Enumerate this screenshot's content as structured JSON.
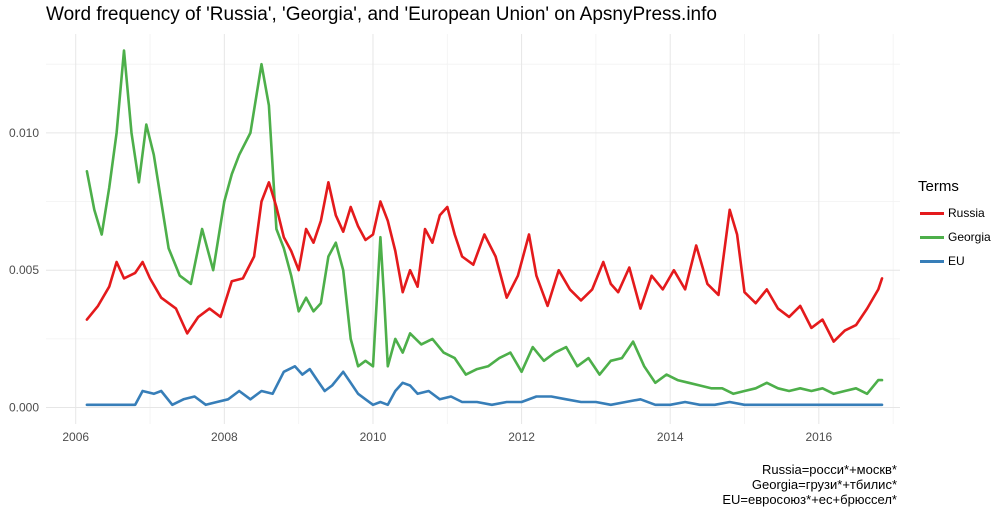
{
  "title": "Word frequency of 'Russia', 'Georgia', and 'European Union' on ApsnyPress.info",
  "legend": {
    "title": "Terms"
  },
  "caption": [
    "Russia=росси*+москв*",
    "Georgia=грузи*+тбилис*",
    "EU=евросоюз*+ес+брюссел*"
  ],
  "chart_data": {
    "type": "line",
    "title": "Word frequency of 'Russia', 'Georgia', and 'European Union' on ApsnyPress.info",
    "xlabel": "",
    "ylabel": "",
    "xlim": [
      2005.6,
      2017.2
    ],
    "ylim": [
      -0.0006,
      0.0136
    ],
    "x_ticks": [
      2006,
      2008,
      2010,
      2012,
      2014,
      2016
    ],
    "y_ticks": [
      0.0,
      0.005,
      0.01
    ],
    "y_tick_labels": [
      "0.000",
      "0.005",
      "0.010"
    ],
    "grid": true,
    "legend_position": "right",
    "series": [
      {
        "name": "Russia",
        "color": "#e41a1c",
        "x": [
          2006.15,
          2006.3,
          2006.45,
          2006.55,
          2006.65,
          2006.8,
          2006.9,
          2007.0,
          2007.15,
          2007.35,
          2007.5,
          2007.65,
          2007.8,
          2007.95,
          2008.1,
          2008.25,
          2008.4,
          2008.5,
          2008.6,
          2008.7,
          2008.8,
          2008.9,
          2009.0,
          2009.1,
          2009.2,
          2009.3,
          2009.4,
          2009.5,
          2009.6,
          2009.7,
          2009.8,
          2009.9,
          2010.0,
          2010.1,
          2010.2,
          2010.3,
          2010.4,
          2010.5,
          2010.6,
          2010.7,
          2010.8,
          2010.9,
          2011.0,
          2011.1,
          2011.2,
          2011.35,
          2011.5,
          2011.65,
          2011.8,
          2011.95,
          2012.1,
          2012.2,
          2012.35,
          2012.5,
          2012.65,
          2012.8,
          2012.95,
          2013.1,
          2013.2,
          2013.3,
          2013.45,
          2013.6,
          2013.75,
          2013.9,
          2014.05,
          2014.2,
          2014.35,
          2014.5,
          2014.65,
          2014.8,
          2014.9,
          2015.0,
          2015.15,
          2015.3,
          2015.45,
          2015.6,
          2015.75,
          2015.9,
          2016.05,
          2016.2,
          2016.35,
          2016.5,
          2016.65,
          2016.8,
          2016.85
        ],
        "values": [
          0.0032,
          0.0037,
          0.0044,
          0.0053,
          0.0047,
          0.0049,
          0.0053,
          0.0047,
          0.004,
          0.0036,
          0.0027,
          0.0033,
          0.0036,
          0.0033,
          0.0046,
          0.0047,
          0.0055,
          0.0075,
          0.0082,
          0.0073,
          0.0062,
          0.0057,
          0.005,
          0.0065,
          0.006,
          0.0068,
          0.0082,
          0.007,
          0.0064,
          0.0073,
          0.0066,
          0.0061,
          0.0063,
          0.0075,
          0.0068,
          0.0057,
          0.0042,
          0.005,
          0.0044,
          0.0065,
          0.006,
          0.007,
          0.0073,
          0.0063,
          0.0055,
          0.0052,
          0.0063,
          0.0055,
          0.004,
          0.0048,
          0.0063,
          0.0048,
          0.0037,
          0.005,
          0.0043,
          0.0039,
          0.0043,
          0.0053,
          0.0045,
          0.0042,
          0.0051,
          0.0036,
          0.0048,
          0.0043,
          0.005,
          0.0043,
          0.0059,
          0.0045,
          0.0041,
          0.0072,
          0.0063,
          0.0042,
          0.0038,
          0.0043,
          0.0036,
          0.0033,
          0.0037,
          0.0029,
          0.0032,
          0.0024,
          0.0028,
          0.003,
          0.0036,
          0.0043,
          0.0047
        ]
      },
      {
        "name": "Georgia",
        "color": "#4daf4a",
        "x": [
          2006.15,
          2006.25,
          2006.35,
          2006.45,
          2006.55,
          2006.65,
          2006.75,
          2006.85,
          2006.95,
          2007.05,
          2007.15,
          2007.25,
          2007.4,
          2007.55,
          2007.7,
          2007.85,
          2008.0,
          2008.1,
          2008.2,
          2008.35,
          2008.5,
          2008.6,
          2008.7,
          2008.8,
          2008.9,
          2009.0,
          2009.1,
          2009.2,
          2009.3,
          2009.4,
          2009.5,
          2009.6,
          2009.7,
          2009.8,
          2009.9,
          2010.0,
          2010.1,
          2010.15,
          2010.2,
          2010.3,
          2010.4,
          2010.5,
          2010.65,
          2010.8,
          2010.95,
          2011.1,
          2011.25,
          2011.4,
          2011.55,
          2011.7,
          2011.85,
          2012.0,
          2012.15,
          2012.3,
          2012.45,
          2012.6,
          2012.75,
          2012.9,
          2013.05,
          2013.2,
          2013.35,
          2013.5,
          2013.65,
          2013.8,
          2013.95,
          2014.1,
          2014.25,
          2014.4,
          2014.55,
          2014.7,
          2014.85,
          2015.0,
          2015.15,
          2015.3,
          2015.45,
          2015.6,
          2015.75,
          2015.9,
          2016.05,
          2016.2,
          2016.35,
          2016.5,
          2016.65,
          2016.8,
          2016.85
        ],
        "values": [
          0.0086,
          0.0072,
          0.0063,
          0.008,
          0.01,
          0.013,
          0.01,
          0.0082,
          0.0103,
          0.0092,
          0.0075,
          0.0058,
          0.0048,
          0.0045,
          0.0065,
          0.005,
          0.0075,
          0.0085,
          0.0092,
          0.01,
          0.0125,
          0.011,
          0.0065,
          0.0058,
          0.0048,
          0.0035,
          0.004,
          0.0035,
          0.0038,
          0.0055,
          0.006,
          0.005,
          0.0025,
          0.0015,
          0.0017,
          0.0015,
          0.0062,
          0.004,
          0.0015,
          0.0025,
          0.002,
          0.0027,
          0.0023,
          0.0025,
          0.002,
          0.0018,
          0.0012,
          0.0014,
          0.0015,
          0.0018,
          0.002,
          0.0013,
          0.0022,
          0.0017,
          0.002,
          0.0022,
          0.0015,
          0.0018,
          0.0012,
          0.0017,
          0.0018,
          0.0024,
          0.0015,
          0.0009,
          0.0012,
          0.001,
          0.0009,
          0.0008,
          0.0007,
          0.0007,
          0.0005,
          0.0006,
          0.0007,
          0.0009,
          0.0007,
          0.0006,
          0.0007,
          0.0006,
          0.0007,
          0.0005,
          0.0006,
          0.0007,
          0.0005,
          0.001,
          0.001
        ]
      },
      {
        "name": "EU",
        "color": "#377eb8",
        "x": [
          2006.15,
          2006.5,
          2006.8,
          2006.9,
          2007.05,
          2007.15,
          2007.3,
          2007.45,
          2007.6,
          2007.75,
          2007.9,
          2008.05,
          2008.2,
          2008.35,
          2008.5,
          2008.65,
          2008.8,
          2008.95,
          2009.05,
          2009.15,
          2009.25,
          2009.35,
          2009.45,
          2009.6,
          2009.7,
          2009.8,
          2009.9,
          2010.0,
          2010.1,
          2010.2,
          2010.3,
          2010.4,
          2010.5,
          2010.6,
          2010.75,
          2010.9,
          2011.05,
          2011.2,
          2011.4,
          2011.6,
          2011.8,
          2012.0,
          2012.2,
          2012.4,
          2012.6,
          2012.8,
          2013.0,
          2013.2,
          2013.4,
          2013.6,
          2013.8,
          2014.0,
          2014.2,
          2014.4,
          2014.6,
          2014.8,
          2015.0,
          2015.2,
          2015.4,
          2015.6,
          2015.8,
          2016.0,
          2016.2,
          2016.4,
          2016.6,
          2016.85
        ],
        "values": [
          0.0001,
          0.0001,
          0.0001,
          0.0006,
          0.0005,
          0.0006,
          0.0001,
          0.0003,
          0.0004,
          0.0001,
          0.0002,
          0.0003,
          0.0006,
          0.0003,
          0.0006,
          0.0005,
          0.0013,
          0.0015,
          0.0012,
          0.0014,
          0.001,
          0.0006,
          0.0008,
          0.0013,
          0.0009,
          0.0005,
          0.0003,
          0.0001,
          0.0002,
          0.0001,
          0.0006,
          0.0009,
          0.0008,
          0.0005,
          0.0006,
          0.0003,
          0.0004,
          0.0002,
          0.0002,
          0.0001,
          0.0002,
          0.0002,
          0.0004,
          0.0004,
          0.0003,
          0.0002,
          0.0002,
          0.0001,
          0.0002,
          0.0003,
          0.0001,
          0.0001,
          0.0002,
          0.0001,
          0.0001,
          0.0002,
          0.0001,
          0.0001,
          0.0001,
          0.0001,
          0.0001,
          0.0001,
          0.0001,
          0.0001,
          0.0001,
          0.0001
        ]
      }
    ]
  }
}
